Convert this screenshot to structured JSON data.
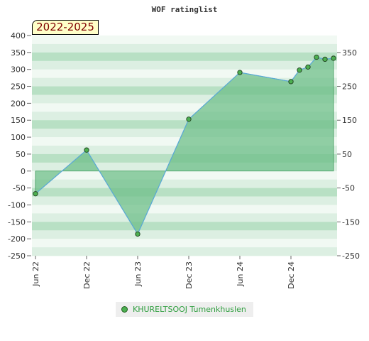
{
  "chart_data": {
    "type": "area",
    "title": "WOF ratinglist",
    "period_label": "2022-2025",
    "x_tick_labels": [
      "Jun 22",
      "Dec 22",
      "Jun 23",
      "Dec 23",
      "Jun 24",
      "Dec 24"
    ],
    "y_left_ticks": [
      400,
      350,
      300,
      250,
      200,
      150,
      100,
      50,
      0,
      -50,
      -100,
      -150,
      -200,
      -250
    ],
    "y_right_ticks": [
      350,
      250,
      150,
      50,
      -50,
      -150,
      -250
    ],
    "ylim": [
      -250,
      400
    ],
    "grid": false,
    "legend_position": "bottom",
    "colors": {
      "line": "#5aa9d8",
      "fill": "#6fbf89",
      "point": "#4caf50",
      "band_light": "#f1f9f3",
      "band_mid": "#dcefe2",
      "band_dark": "#b8e0c4",
      "legend_text": "#2e9e3e"
    },
    "series": [
      {
        "name": "KHURELTSOOJ Tumenkhuslen",
        "points": [
          {
            "x": "2022-06",
            "y": -67
          },
          {
            "x": "2022-12",
            "y": 62
          },
          {
            "x": "2023-06",
            "y": -186
          },
          {
            "x": "2023-12",
            "y": 153
          },
          {
            "x": "2024-06",
            "y": 291
          },
          {
            "x": "2024-12",
            "y": 264
          },
          {
            "x": "2025-01",
            "y": 298
          },
          {
            "x": "2025-02",
            "y": 307
          },
          {
            "x": "2025-03",
            "y": 336
          },
          {
            "x": "2025-04",
            "y": 330
          },
          {
            "x": "2025-05",
            "y": 333
          }
        ]
      }
    ]
  }
}
